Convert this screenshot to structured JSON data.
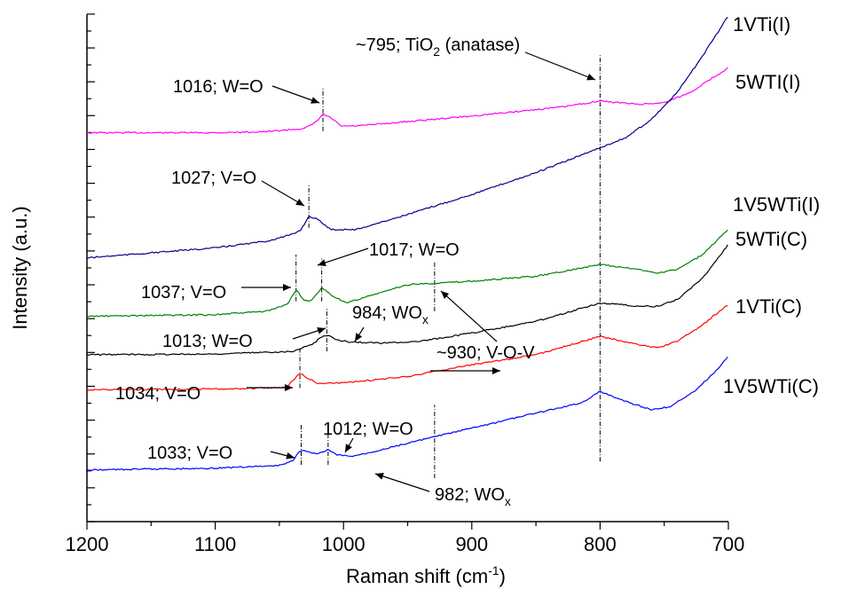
{
  "chart_data": {
    "type": "line",
    "title": "",
    "xlabel": "Raman shift (cm",
    "xlabel_sup": "-1",
    "xlabel_end": ")",
    "ylabel": "Intensity (a.u.)",
    "xlim": [
      1200,
      700
    ],
    "x_reversed": true,
    "xticks": [
      1200,
      1100,
      1000,
      900,
      800,
      700
    ],
    "ylim": [
      0,
      15.2
    ],
    "y_tick_labels": false,
    "grid": false,
    "series": [
      {
        "name": "5WTI(I)",
        "color": "#ff00ff",
        "points": [
          [
            1200,
            11.65
          ],
          [
            1100,
            11.65
          ],
          [
            1060,
            11.68
          ],
          [
            1030,
            11.78
          ],
          [
            1022,
            11.95
          ],
          [
            1016,
            12.2
          ],
          [
            1010,
            12.1
          ],
          [
            1002,
            11.85
          ],
          [
            990,
            11.85
          ],
          [
            900,
            12.15
          ],
          [
            830,
            12.42
          ],
          [
            800,
            12.6
          ],
          [
            770,
            12.5
          ],
          [
            750,
            12.55
          ],
          [
            730,
            12.85
          ],
          [
            712,
            13.3
          ],
          [
            700,
            13.6
          ]
        ]
      },
      {
        "name": "1VTi(I)",
        "color": "#00008b",
        "points": [
          [
            1200,
            7.9
          ],
          [
            1150,
            8.05
          ],
          [
            1100,
            8.2
          ],
          [
            1060,
            8.4
          ],
          [
            1040,
            8.6
          ],
          [
            1033,
            8.75
          ],
          [
            1027,
            9.15
          ],
          [
            1020,
            9.05
          ],
          [
            1010,
            8.75
          ],
          [
            990,
            8.75
          ],
          [
            950,
            9.2
          ],
          [
            900,
            9.8
          ],
          [
            850,
            10.45
          ],
          [
            820,
            10.9
          ],
          [
            800,
            11.2
          ],
          [
            780,
            11.5
          ],
          [
            760,
            12.05
          ],
          [
            740,
            12.85
          ],
          [
            720,
            13.95
          ],
          [
            705,
            14.85
          ],
          [
            700,
            15.15
          ]
        ]
      },
      {
        "name": "1V5WTi(I)",
        "color": "#008000",
        "points": [
          [
            1200,
            6.15
          ],
          [
            1100,
            6.2
          ],
          [
            1060,
            6.3
          ],
          [
            1044,
            6.5
          ],
          [
            1037,
            6.95
          ],
          [
            1030,
            6.6
          ],
          [
            1024,
            6.65
          ],
          [
            1017,
            7.0
          ],
          [
            1008,
            6.75
          ],
          [
            998,
            6.55
          ],
          [
            985,
            6.7
          ],
          [
            950,
            7.1
          ],
          [
            900,
            7.2
          ],
          [
            850,
            7.35
          ],
          [
            800,
            7.7
          ],
          [
            770,
            7.55
          ],
          [
            755,
            7.45
          ],
          [
            740,
            7.55
          ],
          [
            720,
            8.0
          ],
          [
            700,
            8.75
          ]
        ]
      },
      {
        "name": "5WTi(C)",
        "color": "#000000",
        "points": [
          [
            1200,
            5.0
          ],
          [
            1100,
            5.02
          ],
          [
            1040,
            5.1
          ],
          [
            1025,
            5.3
          ],
          [
            1018,
            5.5
          ],
          [
            1013,
            5.6
          ],
          [
            1006,
            5.45
          ],
          [
            995,
            5.38
          ],
          [
            970,
            5.35
          ],
          [
            940,
            5.4
          ],
          [
            900,
            5.65
          ],
          [
            850,
            6.0
          ],
          [
            800,
            6.55
          ],
          [
            770,
            6.45
          ],
          [
            755,
            6.45
          ],
          [
            740,
            6.65
          ],
          [
            720,
            7.3
          ],
          [
            700,
            8.3
          ]
        ]
      },
      {
        "name": "1VTi(C)",
        "color": "#ff0000",
        "points": [
          [
            1200,
            3.95
          ],
          [
            1100,
            3.97
          ],
          [
            1045,
            4.02
          ],
          [
            1040,
            4.2
          ],
          [
            1034,
            4.45
          ],
          [
            1028,
            4.3
          ],
          [
            1020,
            4.15
          ],
          [
            1000,
            4.15
          ],
          [
            950,
            4.35
          ],
          [
            900,
            4.7
          ],
          [
            850,
            5.0
          ],
          [
            800,
            5.55
          ],
          [
            770,
            5.3
          ],
          [
            755,
            5.2
          ],
          [
            740,
            5.4
          ],
          [
            720,
            5.9
          ],
          [
            700,
            6.5
          ]
        ]
      },
      {
        "name": "1V5WTi(C)",
        "color": "#0000ff",
        "points": [
          [
            1200,
            1.55
          ],
          [
            1100,
            1.6
          ],
          [
            1050,
            1.68
          ],
          [
            1040,
            1.82
          ],
          [
            1033,
            2.15
          ],
          [
            1025,
            2.05
          ],
          [
            1018,
            2.05
          ],
          [
            1012,
            2.15
          ],
          [
            1005,
            2.0
          ],
          [
            995,
            1.95
          ],
          [
            982,
            2.05
          ],
          [
            950,
            2.35
          ],
          [
            900,
            2.8
          ],
          [
            850,
            3.25
          ],
          [
            815,
            3.55
          ],
          [
            800,
            3.9
          ],
          [
            780,
            3.6
          ],
          [
            760,
            3.35
          ],
          [
            745,
            3.45
          ],
          [
            725,
            3.95
          ],
          [
            710,
            4.5
          ],
          [
            700,
            4.95
          ]
        ]
      }
    ],
    "series_labels": [
      "1VTi(I)",
      "5WTI(I)",
      "1V5WTi(I)",
      "5WTi(C)",
      "1VTi(C)",
      "1V5WTi(C)"
    ],
    "vlines": [
      {
        "x": 1016,
        "ymin": 11.7,
        "ymax": 13.0
      },
      {
        "x": 800,
        "ymin": 1.8,
        "ymax": 14.0
      },
      {
        "x": 1027,
        "ymin": 8.8,
        "ymax": 10.1
      },
      {
        "x": 1037,
        "ymin": 6.6,
        "ymax": 8.0
      },
      {
        "x": 1017,
        "ymin": 6.6,
        "ymax": 7.9
      },
      {
        "x": 929,
        "ymin": 6.3,
        "ymax": 7.8
      },
      {
        "x": 1013,
        "ymin": 5.1,
        "ymax": 6.4
      },
      {
        "x": 1034,
        "ymin": 4.0,
        "ymax": 5.2
      },
      {
        "x": 929,
        "ymin": 1.3,
        "ymax": 3.5
      },
      {
        "x": 1033,
        "ymin": 1.7,
        "ymax": 2.9
      },
      {
        "x": 1012,
        "ymin": 1.7,
        "ymax": 2.9
      }
    ],
    "annotations": [
      {
        "text": "1016; W=O"
      },
      {
        "text": "~795; TiO",
        "sub": "2",
        "rest": " (anatase)"
      },
      {
        "text": "1027; V=O"
      },
      {
        "text": "1017; W=O"
      },
      {
        "text": "1037; V=O"
      },
      {
        "text": "984; WO",
        "sub": "x"
      },
      {
        "text": "1013; W=O"
      },
      {
        "text": "~930; V-O-V"
      },
      {
        "text": "1034; V=O"
      },
      {
        "text": "1012; W=O"
      },
      {
        "text": "1033; V=O"
      },
      {
        "text": "982; WO",
        "sub": "x"
      }
    ]
  }
}
